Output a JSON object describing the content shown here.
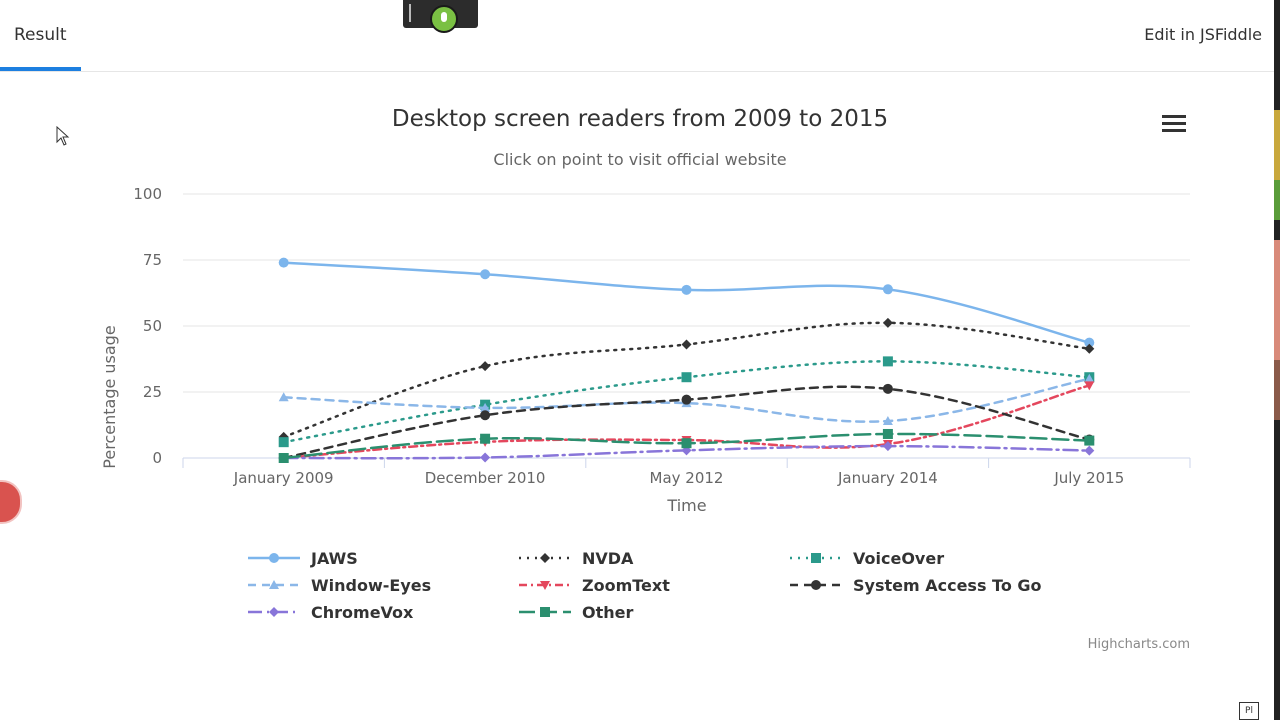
{
  "header": {
    "tab_result": "Result",
    "edit_link": "Edit in JSFiddle"
  },
  "credits": "Highcharts.com",
  "badge": "Pl",
  "chart_data": {
    "type": "line",
    "title": "Desktop screen readers from 2009 to 2015",
    "subtitle": "Click on point to visit official website",
    "xlabel": "Time",
    "ylabel": "Percentage usage",
    "categories": [
      "January 2009",
      "December 2010",
      "May 2012",
      "January 2014",
      "July 2015"
    ],
    "ylim": [
      0,
      100
    ],
    "yticks": [
      0,
      25,
      50,
      75,
      100
    ],
    "grid": true,
    "legend_position": "bottom",
    "series": [
      {
        "name": "JAWS",
        "values": [
          74.0,
          69.6,
          63.7,
          63.9,
          43.7
        ],
        "color": "#7cb5ec",
        "dash": "solid",
        "marker": "circle"
      },
      {
        "name": "NVDA",
        "values": [
          8.0,
          34.8,
          43.0,
          51.2,
          41.4
        ],
        "color": "#333333",
        "dash": "dot",
        "marker": "diamond"
      },
      {
        "name": "VoiceOver",
        "values": [
          6.0,
          20.2,
          30.6,
          36.6,
          30.6
        ],
        "color": "#2b9a8b",
        "dash": "dot",
        "marker": "square"
      },
      {
        "name": "Window-Eyes",
        "values": [
          23.0,
          19.0,
          20.8,
          14.0,
          30.0
        ],
        "color": "#8bb7e8",
        "dash": "dash",
        "marker": "triangle"
      },
      {
        "name": "ZoomText",
        "values": [
          0,
          6.1,
          6.8,
          5.3,
          27.5
        ],
        "color": "#e4475d",
        "dash": "dashdot",
        "marker": "triangle-down"
      },
      {
        "name": "System Access To Go",
        "values": [
          0,
          16.2,
          22.1,
          26.2,
          7.0
        ],
        "color": "#333333",
        "dash": "dash",
        "marker": "circle"
      },
      {
        "name": "ChromeVox",
        "values": [
          0,
          0.2,
          2.9,
          4.5,
          2.8
        ],
        "color": "#8875d9",
        "dash": "longdashdot",
        "marker": "diamond"
      },
      {
        "name": "Other",
        "values": [
          0,
          7.3,
          5.6,
          9.1,
          6.6
        ],
        "color": "#2b8f6f",
        "dash": "longdash",
        "marker": "square"
      }
    ]
  }
}
